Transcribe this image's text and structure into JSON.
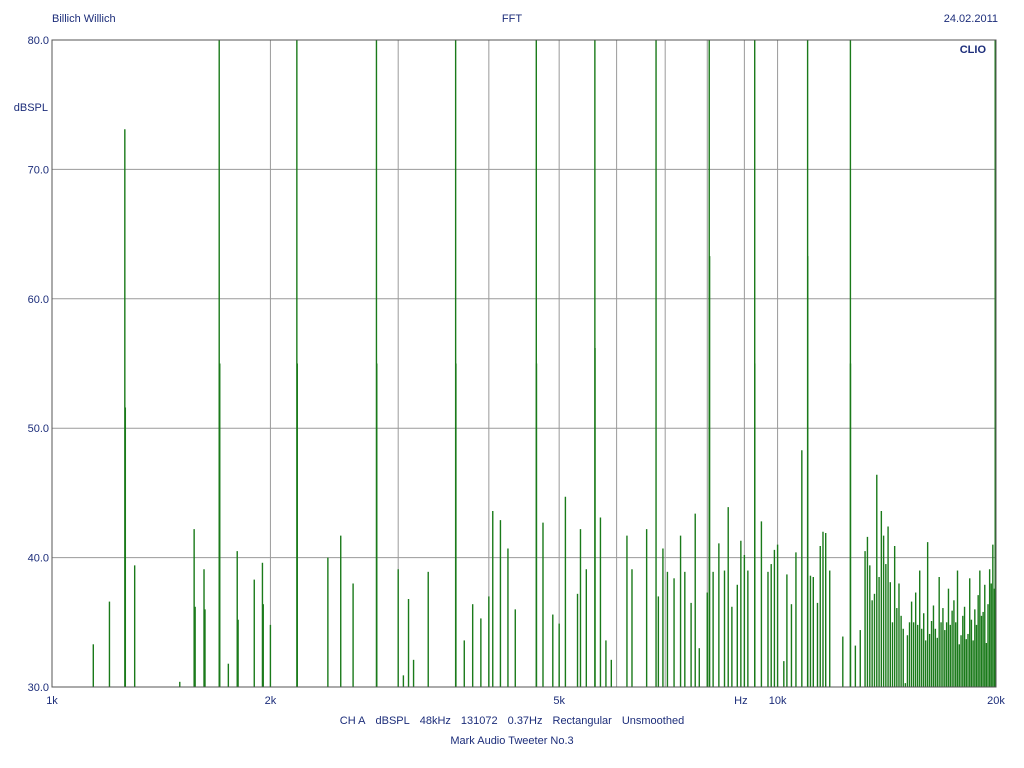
{
  "header": {
    "left": "Billich Willich",
    "center": "FFT",
    "right": "24.02.2011"
  },
  "brand": "CLIO",
  "footer": {
    "settings": [
      "CH A",
      "dBSPL",
      "48kHz",
      "131072",
      "0.37Hz",
      "Rectangular",
      "Unsmoothed"
    ],
    "subtitle": "Mark Audio Tweeter No.3"
  },
  "colors": {
    "trace": "#1a7a1a",
    "grid": "#9a9a9a",
    "text": "#1c2d7a"
  },
  "chart_data": {
    "type": "line",
    "title": "FFT",
    "ylabel": "dBSPL",
    "xlabel": "Hz",
    "x_scale": "log",
    "xlim": [
      1000,
      20000
    ],
    "ylim": [
      30,
      80
    ],
    "y_ticks": [
      {
        "value": 30,
        "label": "30.0"
      },
      {
        "value": 40,
        "label": "40.0"
      },
      {
        "value": 50,
        "label": "50.0"
      },
      {
        "value": 60,
        "label": "60.0"
      },
      {
        "value": 70,
        "label": "70.0"
      },
      {
        "value": 80,
        "label": "80.0"
      }
    ],
    "x_tick_labels": [
      {
        "value": 1000,
        "label": "1k"
      },
      {
        "value": 2000,
        "label": "2k"
      },
      {
        "value": 5000,
        "label": "5k"
      },
      {
        "value": 10000,
        "label": "10k"
      },
      {
        "value": 20000,
        "label": "20k"
      }
    ],
    "x_minor_grid": [
      3000,
      4000,
      6000,
      7000,
      8000,
      9000
    ],
    "grid": true,
    "series": [
      {
        "peaks_hz_db": [
          [
            1140,
            33.3
          ],
          [
            1200,
            36.6
          ],
          [
            1260,
            73.1
          ],
          [
            1262,
            51.6
          ],
          [
            1300,
            39.4
          ],
          [
            1500,
            30.4
          ],
          [
            1570,
            42.2
          ],
          [
            1575,
            36.2
          ],
          [
            1620,
            39.1
          ],
          [
            1625,
            36.0
          ],
          [
            1700,
            80.0
          ],
          [
            1703,
            55.0
          ],
          [
            1750,
            31.8
          ],
          [
            1800,
            40.5
          ],
          [
            1805,
            35.2
          ],
          [
            1900,
            38.3
          ],
          [
            1950,
            39.6
          ],
          [
            1955,
            36.4
          ],
          [
            2000,
            34.8
          ],
          [
            2175,
            80.0
          ],
          [
            2178,
            55.0
          ],
          [
            2400,
            40.0
          ],
          [
            2500,
            41.7
          ],
          [
            2600,
            38.0
          ],
          [
            2800,
            80.0
          ],
          [
            2803,
            55.0
          ],
          [
            3000,
            39.1
          ],
          [
            3050,
            30.9
          ],
          [
            3100,
            36.8
          ],
          [
            3150,
            32.1
          ],
          [
            3300,
            38.9
          ],
          [
            3600,
            80.0
          ],
          [
            3603,
            55.0
          ],
          [
            3700,
            33.6
          ],
          [
            3800,
            36.4
          ],
          [
            3900,
            35.3
          ],
          [
            4000,
            37.0
          ],
          [
            4050,
            43.6
          ],
          [
            4150,
            42.9
          ],
          [
            4250,
            40.7
          ],
          [
            4350,
            36.0
          ],
          [
            4650,
            80.0
          ],
          [
            4653,
            55.0
          ],
          [
            4750,
            42.7
          ],
          [
            4900,
            35.6
          ],
          [
            5000,
            34.9
          ],
          [
            5100,
            44.7
          ],
          [
            5300,
            37.2
          ],
          [
            5350,
            42.2
          ],
          [
            5450,
            39.1
          ],
          [
            5600,
            80.0
          ],
          [
            5603,
            56.2
          ],
          [
            5700,
            43.1
          ],
          [
            5800,
            33.6
          ],
          [
            5900,
            32.1
          ],
          [
            6200,
            41.7
          ],
          [
            6300,
            39.1
          ],
          [
            6600,
            42.2
          ],
          [
            6800,
            80.0
          ],
          [
            6850,
            37.0
          ],
          [
            6950,
            40.7
          ],
          [
            7050,
            38.9
          ],
          [
            7200,
            38.4
          ],
          [
            7350,
            41.7
          ],
          [
            7450,
            38.9
          ],
          [
            7600,
            36.5
          ],
          [
            7700,
            43.4
          ],
          [
            7800,
            33.0
          ],
          [
            8000,
            37.3
          ],
          [
            8050,
            80.0
          ],
          [
            8060,
            63.3
          ],
          [
            8150,
            38.9
          ],
          [
            8300,
            41.1
          ],
          [
            8450,
            39.0
          ],
          [
            8550,
            43.9
          ],
          [
            8650,
            36.2
          ],
          [
            8800,
            37.9
          ],
          [
            8900,
            41.3
          ],
          [
            9000,
            40.2
          ],
          [
            9100,
            39.0
          ],
          [
            9300,
            80.0
          ],
          [
            9303,
            55.0
          ],
          [
            9500,
            42.8
          ],
          [
            9700,
            38.9
          ],
          [
            9800,
            39.5
          ],
          [
            9900,
            40.6
          ],
          [
            10000,
            41.0
          ],
          [
            10200,
            32.0
          ],
          [
            10300,
            38.7
          ],
          [
            10450,
            36.4
          ],
          [
            10600,
            40.4
          ],
          [
            10800,
            48.3
          ],
          [
            11000,
            80.0
          ],
          [
            11003,
            63.3
          ],
          [
            11100,
            38.6
          ],
          [
            11200,
            38.5
          ],
          [
            11350,
            36.5
          ],
          [
            11450,
            40.9
          ],
          [
            11550,
            42.0
          ],
          [
            11650,
            41.9
          ],
          [
            11800,
            39.0
          ],
          [
            12300,
            33.9
          ],
          [
            12600,
            80.0
          ],
          [
            12603,
            55.0
          ],
          [
            12800,
            33.2
          ],
          [
            13000,
            34.4
          ],
          [
            13200,
            40.5
          ],
          [
            13300,
            41.6
          ],
          [
            13400,
            39.4
          ],
          [
            13500,
            36.7
          ],
          [
            13600,
            37.2
          ],
          [
            13700,
            46.4
          ],
          [
            13800,
            38.5
          ],
          [
            13900,
            43.6
          ],
          [
            14000,
            41.7
          ],
          [
            14100,
            39.5
          ],
          [
            14200,
            42.4
          ],
          [
            14300,
            38.1
          ],
          [
            14400,
            35.0
          ],
          [
            14500,
            40.9
          ],
          [
            14600,
            36.1
          ],
          [
            14700,
            38.0
          ],
          [
            14800,
            35.5
          ],
          [
            14900,
            34.5
          ],
          [
            15000,
            30.3
          ],
          [
            15100,
            34.0
          ],
          [
            15200,
            35.0
          ],
          [
            15300,
            36.6
          ],
          [
            15400,
            35.0
          ],
          [
            15500,
            37.3
          ],
          [
            15600,
            34.8
          ],
          [
            15700,
            39.0
          ],
          [
            15800,
            34.5
          ],
          [
            15900,
            35.7
          ],
          [
            16000,
            33.6
          ],
          [
            16100,
            41.2
          ],
          [
            16200,
            34.1
          ],
          [
            16300,
            35.1
          ],
          [
            16400,
            36.3
          ],
          [
            16500,
            34.5
          ],
          [
            16600,
            33.8
          ],
          [
            16700,
            38.5
          ],
          [
            16800,
            35.0
          ],
          [
            16900,
            36.1
          ],
          [
            17000,
            34.4
          ],
          [
            17100,
            35.0
          ],
          [
            17200,
            37.6
          ],
          [
            17300,
            34.8
          ],
          [
            17400,
            35.9
          ],
          [
            17500,
            36.7
          ],
          [
            17600,
            35.0
          ],
          [
            17700,
            39.0
          ],
          [
            17800,
            33.3
          ],
          [
            17900,
            34.0
          ],
          [
            18000,
            35.5
          ],
          [
            18100,
            36.2
          ],
          [
            18200,
            33.7
          ],
          [
            18300,
            34.1
          ],
          [
            18400,
            38.4
          ],
          [
            18500,
            35.2
          ],
          [
            18600,
            33.6
          ],
          [
            18700,
            36.0
          ],
          [
            18800,
            34.8
          ],
          [
            18900,
            37.1
          ],
          [
            19000,
            39.0
          ],
          [
            19100,
            35.5
          ],
          [
            19200,
            35.8
          ],
          [
            19300,
            37.9
          ],
          [
            19400,
            33.4
          ],
          [
            19500,
            36.4
          ],
          [
            19600,
            39.1
          ],
          [
            19700,
            38.0
          ],
          [
            19800,
            41.0
          ],
          [
            19900,
            37.6
          ],
          [
            19950,
            80.0
          ]
        ]
      }
    ]
  }
}
